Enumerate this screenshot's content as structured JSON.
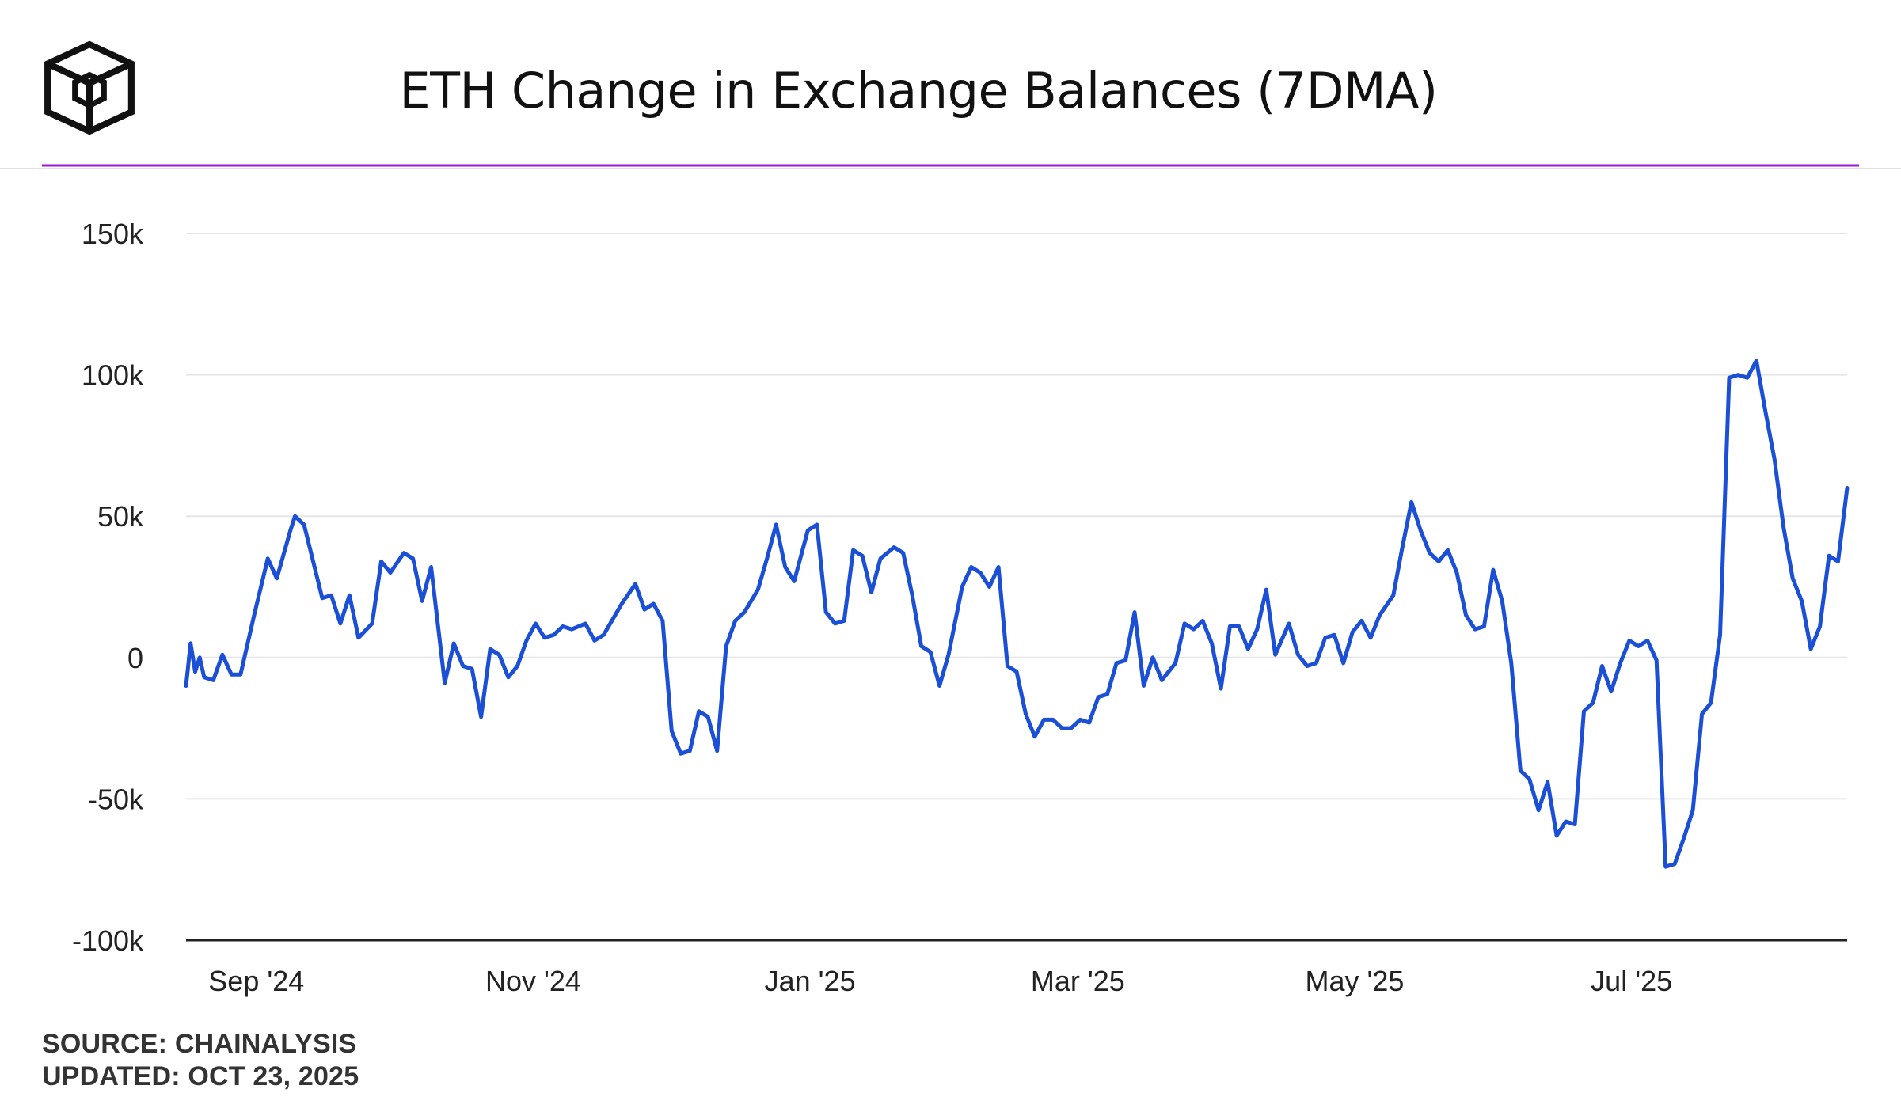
{
  "header": {
    "title": "ETH Change in Exchange Balances (7DMA)"
  },
  "footer": {
    "source": "SOURCE: CHAINALYSIS",
    "updated": "UPDATED: OCT 23, 2025"
  },
  "colors": {
    "accent_rule": "#9b1bd1",
    "series_line": "#1a4fd6",
    "grid": "#e6e6e6",
    "axis": "#222222",
    "text": "#222222"
  },
  "chart_data": {
    "type": "line",
    "title": "ETH Change in Exchange Balances (7DMA)",
    "xlabel": "",
    "ylabel": "",
    "ylim": [
      -100000,
      150000
    ],
    "y_ticks": [
      {
        "value": 150000,
        "label": "150k"
      },
      {
        "value": 100000,
        "label": "100k"
      },
      {
        "value": 50000,
        "label": "50k"
      },
      {
        "value": 0,
        "label": "0"
      },
      {
        "value": -50000,
        "label": "-50k"
      },
      {
        "value": -100000,
        "label": "-100k"
      }
    ],
    "x_ticks": [
      {
        "date": "2024-09-01",
        "label": "Sep '24"
      },
      {
        "date": "2024-11-01",
        "label": "Nov '24"
      },
      {
        "date": "2025-01-01",
        "label": "Jan '25"
      },
      {
        "date": "2025-03-01",
        "label": "Mar '25"
      },
      {
        "date": "2025-05-01",
        "label": "May '25"
      },
      {
        "date": "2025-07-01",
        "label": "Jul '25"
      }
    ],
    "start_date": "2024-08-20",
    "end_date": "2025-08-21",
    "grid": true,
    "legend": "none",
    "series": [
      {
        "name": "ETH 7DMA change in exchange balances",
        "points": [
          [
            "2024-08-20",
            -10000
          ],
          [
            "2024-08-21",
            5000
          ],
          [
            "2024-08-22",
            -5000
          ],
          [
            "2024-08-23",
            0
          ],
          [
            "2024-08-24",
            -7000
          ],
          [
            "2024-08-26",
            -8000
          ],
          [
            "2024-08-28",
            1000
          ],
          [
            "2024-08-30",
            -6000
          ],
          [
            "2024-09-01",
            -6000
          ],
          [
            "2024-09-04",
            15000
          ],
          [
            "2024-09-07",
            35000
          ],
          [
            "2024-09-09",
            28000
          ],
          [
            "2024-09-12",
            45000
          ],
          [
            "2024-09-13",
            50000
          ],
          [
            "2024-09-15",
            47000
          ],
          [
            "2024-09-19",
            21000
          ],
          [
            "2024-09-21",
            22000
          ],
          [
            "2024-09-23",
            12000
          ],
          [
            "2024-09-25",
            22000
          ],
          [
            "2024-09-27",
            7000
          ],
          [
            "2024-09-30",
            12000
          ],
          [
            "2024-10-02",
            34000
          ],
          [
            "2024-10-04",
            30000
          ],
          [
            "2024-10-07",
            37000
          ],
          [
            "2024-10-09",
            35000
          ],
          [
            "2024-10-11",
            20000
          ],
          [
            "2024-10-13",
            32000
          ],
          [
            "2024-10-16",
            -9000
          ],
          [
            "2024-10-18",
            5000
          ],
          [
            "2024-10-20",
            -3000
          ],
          [
            "2024-10-22",
            -4000
          ],
          [
            "2024-10-24",
            -21000
          ],
          [
            "2024-10-26",
            3000
          ],
          [
            "2024-10-28",
            1000
          ],
          [
            "2024-10-30",
            -7000
          ],
          [
            "2024-11-01",
            -3000
          ],
          [
            "2024-11-03",
            6000
          ],
          [
            "2024-11-05",
            12000
          ],
          [
            "2024-11-07",
            7000
          ],
          [
            "2024-11-09",
            8000
          ],
          [
            "2024-11-11",
            11000
          ],
          [
            "2024-11-13",
            10000
          ],
          [
            "2024-11-16",
            12000
          ],
          [
            "2024-11-18",
            6000
          ],
          [
            "2024-11-20",
            8000
          ],
          [
            "2024-11-24",
            19000
          ],
          [
            "2024-11-27",
            26000
          ],
          [
            "2024-11-29",
            17000
          ],
          [
            "2024-12-01",
            19000
          ],
          [
            "2024-12-03",
            13000
          ],
          [
            "2024-12-05",
            -26000
          ],
          [
            "2024-12-07",
            -34000
          ],
          [
            "2024-12-09",
            -33000
          ],
          [
            "2024-12-11",
            -19000
          ],
          [
            "2024-12-13",
            -21000
          ],
          [
            "2024-12-15",
            -33000
          ],
          [
            "2024-12-17",
            4000
          ],
          [
            "2024-12-19",
            13000
          ],
          [
            "2024-12-21",
            16000
          ],
          [
            "2024-12-24",
            24000
          ],
          [
            "2024-12-26",
            35000
          ],
          [
            "2024-12-28",
            47000
          ],
          [
            "2024-12-30",
            32000
          ],
          [
            "2025-01-01",
            27000
          ],
          [
            "2025-01-04",
            45000
          ],
          [
            "2025-01-06",
            47000
          ],
          [
            "2025-01-08",
            16000
          ],
          [
            "2025-01-10",
            12000
          ],
          [
            "2025-01-12",
            13000
          ],
          [
            "2025-01-14",
            38000
          ],
          [
            "2025-01-16",
            36000
          ],
          [
            "2025-01-18",
            23000
          ],
          [
            "2025-01-20",
            35000
          ],
          [
            "2025-01-23",
            39000
          ],
          [
            "2025-01-25",
            37000
          ],
          [
            "2025-01-27",
            22000
          ],
          [
            "2025-01-29",
            4000
          ],
          [
            "2025-01-31",
            2000
          ],
          [
            "2025-02-02",
            -10000
          ],
          [
            "2025-02-04",
            1000
          ],
          [
            "2025-02-07",
            25000
          ],
          [
            "2025-02-09",
            32000
          ],
          [
            "2025-02-11",
            30000
          ],
          [
            "2025-02-13",
            25000
          ],
          [
            "2025-02-15",
            32000
          ],
          [
            "2025-02-17",
            -3000
          ],
          [
            "2025-02-19",
            -5000
          ],
          [
            "2025-02-21",
            -20000
          ],
          [
            "2025-02-23",
            -28000
          ],
          [
            "2025-02-25",
            -22000
          ],
          [
            "2025-02-27",
            -22000
          ],
          [
            "2025-03-01",
            -25000
          ],
          [
            "2025-03-03",
            -25000
          ],
          [
            "2025-03-05",
            -22000
          ],
          [
            "2025-03-07",
            -23000
          ],
          [
            "2025-03-09",
            -14000
          ],
          [
            "2025-03-11",
            -13000
          ],
          [
            "2025-03-13",
            -2000
          ],
          [
            "2025-03-15",
            -1000
          ],
          [
            "2025-03-17",
            16000
          ],
          [
            "2025-03-19",
            -10000
          ],
          [
            "2025-03-21",
            0
          ],
          [
            "2025-03-23",
            -8000
          ],
          [
            "2025-03-26",
            -2000
          ],
          [
            "2025-03-28",
            12000
          ],
          [
            "2025-03-30",
            10000
          ],
          [
            "2025-04-01",
            13000
          ],
          [
            "2025-04-03",
            5000
          ],
          [
            "2025-04-05",
            -11000
          ],
          [
            "2025-04-07",
            11000
          ],
          [
            "2025-04-09",
            11000
          ],
          [
            "2025-04-11",
            3000
          ],
          [
            "2025-04-13",
            10000
          ],
          [
            "2025-04-15",
            24000
          ],
          [
            "2025-04-17",
            1000
          ],
          [
            "2025-04-20",
            12000
          ],
          [
            "2025-04-22",
            1000
          ],
          [
            "2025-04-24",
            -3000
          ],
          [
            "2025-04-26",
            -2000
          ],
          [
            "2025-04-28",
            7000
          ],
          [
            "2025-04-30",
            8000
          ],
          [
            "2025-05-02",
            -2000
          ],
          [
            "2025-05-04",
            9000
          ],
          [
            "2025-05-06",
            13000
          ],
          [
            "2025-05-08",
            7000
          ],
          [
            "2025-05-10",
            15000
          ],
          [
            "2025-05-13",
            22000
          ],
          [
            "2025-05-15",
            39000
          ],
          [
            "2025-05-17",
            55000
          ],
          [
            "2025-05-19",
            45000
          ],
          [
            "2025-05-21",
            37000
          ],
          [
            "2025-05-23",
            34000
          ],
          [
            "2025-05-25",
            38000
          ],
          [
            "2025-05-27",
            30000
          ],
          [
            "2025-05-29",
            15000
          ],
          [
            "2025-05-31",
            10000
          ],
          [
            "2025-06-02",
            11000
          ],
          [
            "2025-06-04",
            31000
          ],
          [
            "2025-06-06",
            20000
          ],
          [
            "2025-06-08",
            -2000
          ],
          [
            "2025-06-10",
            -40000
          ],
          [
            "2025-06-12",
            -43000
          ],
          [
            "2025-06-14",
            -54000
          ],
          [
            "2025-06-16",
            -44000
          ],
          [
            "2025-06-18",
            -63000
          ],
          [
            "2025-06-20",
            -58000
          ],
          [
            "2025-06-22",
            -59000
          ],
          [
            "2025-06-24",
            -19000
          ],
          [
            "2025-06-26",
            -16000
          ],
          [
            "2025-06-28",
            -3000
          ],
          [
            "2025-06-30",
            -12000
          ],
          [
            "2025-07-02",
            -2000
          ],
          [
            "2025-07-04",
            6000
          ],
          [
            "2025-07-06",
            4000
          ],
          [
            "2025-07-08",
            6000
          ],
          [
            "2025-07-10",
            -1000
          ],
          [
            "2025-07-12",
            -74000
          ],
          [
            "2025-07-14",
            -73000
          ],
          [
            "2025-07-16",
            -64000
          ],
          [
            "2025-07-18",
            -54000
          ],
          [
            "2025-07-20",
            -20000
          ],
          [
            "2025-07-22",
            -16000
          ],
          [
            "2025-07-24",
            8000
          ],
          [
            "2025-07-26",
            99000
          ],
          [
            "2025-07-28",
            100000
          ],
          [
            "2025-07-30",
            99000
          ],
          [
            "2025-08-01",
            105000
          ],
          [
            "2025-08-03",
            87000
          ],
          [
            "2025-08-05",
            70000
          ],
          [
            "2025-08-07",
            46000
          ],
          [
            "2025-08-09",
            28000
          ],
          [
            "2025-08-11",
            20000
          ],
          [
            "2025-08-13",
            3000
          ],
          [
            "2025-08-15",
            11000
          ],
          [
            "2025-08-17",
            36000
          ],
          [
            "2025-08-19",
            34000
          ],
          [
            "2025-08-21",
            60000
          ]
        ]
      }
    ]
  }
}
